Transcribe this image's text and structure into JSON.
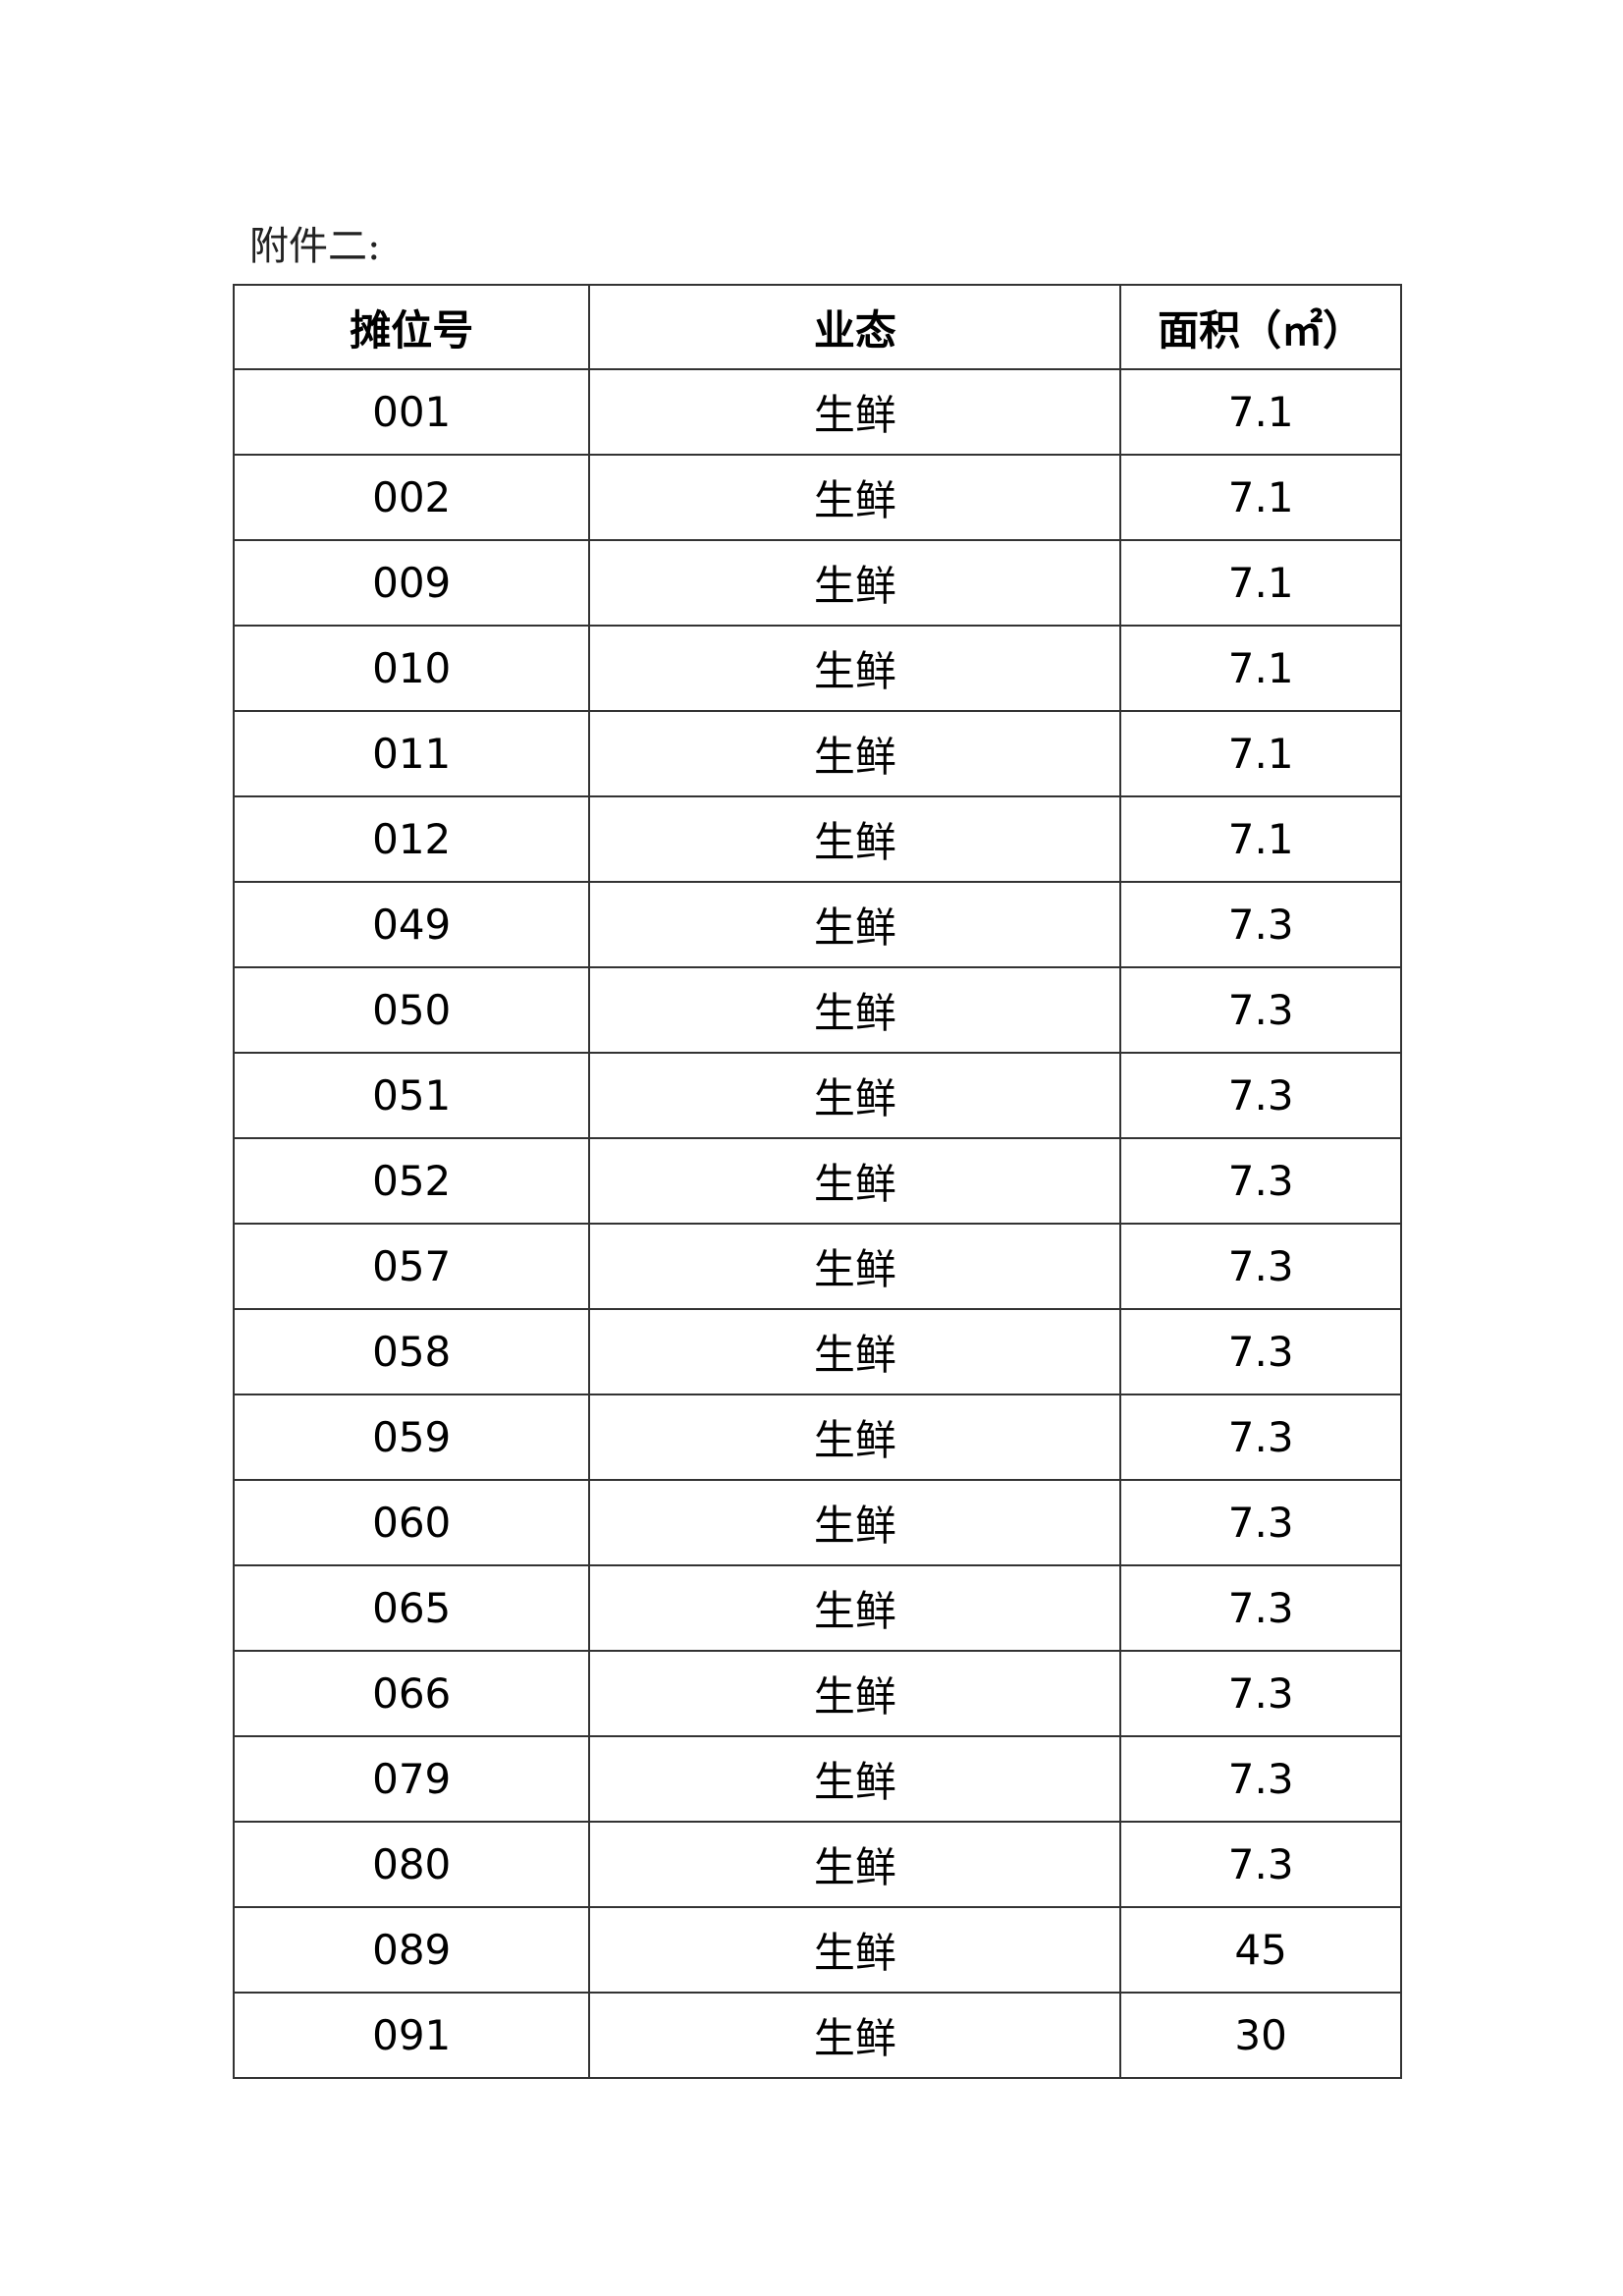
{
  "title": "附件二:",
  "table": {
    "headers": [
      "摊位号",
      "业态",
      "面积（㎡）"
    ],
    "rows": [
      [
        "001",
        "生鲜",
        "7.1"
      ],
      [
        "002",
        "生鲜",
        "7.1"
      ],
      [
        "009",
        "生鲜",
        "7.1"
      ],
      [
        "010",
        "生鲜",
        "7.1"
      ],
      [
        "011",
        "生鲜",
        "7.1"
      ],
      [
        "012",
        "生鲜",
        "7.1"
      ],
      [
        "049",
        "生鲜",
        "7.3"
      ],
      [
        "050",
        "生鲜",
        "7.3"
      ],
      [
        "051",
        "生鲜",
        "7.3"
      ],
      [
        "052",
        "生鲜",
        "7.3"
      ],
      [
        "057",
        "生鲜",
        "7.3"
      ],
      [
        "058",
        "生鲜",
        "7.3"
      ],
      [
        "059",
        "生鲜",
        "7.3"
      ],
      [
        "060",
        "生鲜",
        "7.3"
      ],
      [
        "065",
        "生鲜",
        "7.3"
      ],
      [
        "066",
        "生鲜",
        "7.3"
      ],
      [
        "079",
        "生鲜",
        "7.3"
      ],
      [
        "080",
        "生鲜",
        "7.3"
      ],
      [
        "089",
        "生鲜",
        "45"
      ],
      [
        "091",
        "生鲜",
        "30"
      ]
    ]
  }
}
